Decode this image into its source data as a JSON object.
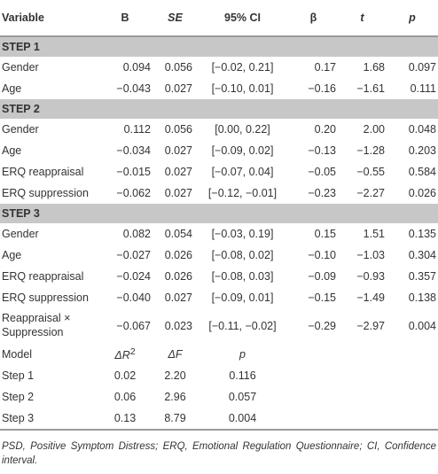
{
  "table": {
    "headers": [
      "Variable",
      "B",
      "SE",
      "95% CI",
      "β",
      "t",
      "p"
    ],
    "step1": {
      "title": "STEP 1",
      "rows": [
        [
          "Gender",
          "0.094",
          "0.056",
          "[−0.02, 0.21]",
          "0.17",
          "1.68",
          "0.097"
        ],
        [
          "Age",
          "−0.043",
          "0.027",
          "[−0.10, 0.01]",
          "−0.16",
          "−1.61",
          "0.111"
        ]
      ]
    },
    "step2": {
      "title": "STEP 2",
      "rows": [
        [
          "Gender",
          "0.112",
          "0.056",
          "[0.00, 0.22]",
          "0.20",
          "2.00",
          "0.048"
        ],
        [
          "Age",
          "−0.034",
          "0.027",
          "[−0.09, 0.02]",
          "−0.13",
          "−1.28",
          "0.203"
        ],
        [
          "ERQ reappraisal",
          "−0.015",
          "0.027",
          "[−0.07, 0.04]",
          "−0.05",
          "−0.55",
          "0.584"
        ],
        [
          "ERQ suppression",
          "−0.062",
          "0.027",
          "[−0.12, −0.01]",
          "−0.23",
          "−2.27",
          "0.026"
        ]
      ]
    },
    "step3": {
      "title": "STEP 3",
      "rows": [
        [
          "Gender",
          "0.082",
          "0.054",
          "[−0.03, 0.19]",
          "0.15",
          "1.51",
          "0.135"
        ],
        [
          "Age",
          "−0.027",
          "0.026",
          "[−0.08, 0.02]",
          "−0.10",
          "−1.03",
          "0.304"
        ],
        [
          "ERQ reappraisal",
          "−0.024",
          "0.026",
          "[−0.08, 0.03]",
          "−0.09",
          "−0.93",
          "0.357"
        ],
        [
          "ERQ suppression",
          "−0.040",
          "0.027",
          "[−0.09, 0.01]",
          "−0.15",
          "−1.49",
          "0.138"
        ],
        [
          "Reappraisal × Suppression",
          "−0.067",
          "0.023",
          "[−0.11, −0.02]",
          "−0.29",
          "−2.97",
          "0.004"
        ]
      ]
    },
    "model": {
      "headers": [
        "Model",
        "ΔR",
        "2",
        "ΔF",
        "p"
      ],
      "rows": [
        [
          "Step 1",
          "0.02",
          "2.20",
          "0.116"
        ],
        [
          "Step 2",
          "0.06",
          "2.96",
          "0.057"
        ],
        [
          "Step 3",
          "0.13",
          "8.79",
          "0.004"
        ]
      ]
    }
  },
  "footnote": "PSD, Positive Symptom Distress; ERQ, Emotional Regulation Questionnaire; CI, Confidence interval."
}
